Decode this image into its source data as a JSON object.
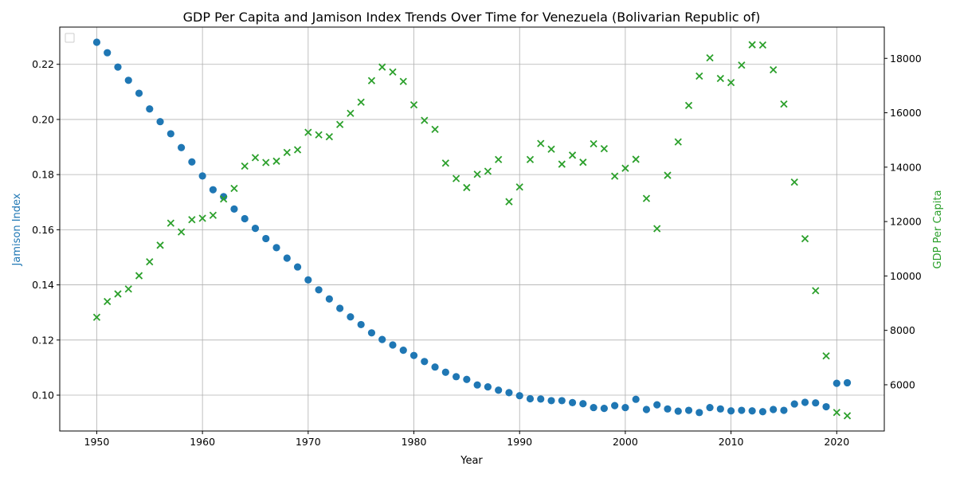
{
  "chart_data": {
    "type": "scatter",
    "title": "GDP Per Capita and Jamison Index Trends Over Time for Venezuela (Bolivarian Republic of)",
    "xlabel": "Year",
    "ylabel_left": "Jamison Index",
    "ylabel_right": "GDP Per Capita",
    "xlim": [
      1946.5,
      2024.5
    ],
    "ylim_left": [
      0.087,
      0.2335
    ],
    "ylim_right": [
      4300,
      19150
    ],
    "x_ticks": [
      1950,
      1960,
      1970,
      1980,
      1990,
      2000,
      2010,
      2020
    ],
    "y_ticks_left": [
      0.1,
      0.12,
      0.14,
      0.16,
      0.18,
      0.2,
      0.22
    ],
    "y_ticks_right": [
      6000,
      8000,
      10000,
      12000,
      14000,
      16000,
      18000
    ],
    "grid": true,
    "legend_position": "upper-left",
    "colors": {
      "jamison": "#1f77b4",
      "gdp": "#2ca02c",
      "grid": "#b0b0b0",
      "axis": "#000000"
    },
    "series": [
      {
        "key": "jamison",
        "axis": "left",
        "marker": "circle",
        "x": [
          1950,
          1951,
          1952,
          1953,
          1954,
          1955,
          1956,
          1957,
          1958,
          1959,
          1960,
          1961,
          1962,
          1963,
          1964,
          1965,
          1966,
          1967,
          1968,
          1969,
          1970,
          1971,
          1972,
          1973,
          1974,
          1975,
          1976,
          1977,
          1978,
          1979,
          1980,
          1981,
          1982,
          1983,
          1984,
          1985,
          1986,
          1987,
          1988,
          1989,
          1990,
          1991,
          1992,
          1993,
          1994,
          1995,
          1996,
          1997,
          1998,
          1999,
          2000,
          2001,
          2002,
          2003,
          2004,
          2005,
          2006,
          2007,
          2008,
          2009,
          2010,
          2011,
          2012,
          2013,
          2014,
          2015,
          2016,
          2017,
          2018,
          2019,
          2020,
          2021
        ],
        "values": [
          0.228,
          0.2242,
          0.219,
          0.2142,
          0.2095,
          0.2038,
          0.1992,
          0.1948,
          0.1898,
          0.1846,
          0.1795,
          0.1745,
          0.172,
          0.1675,
          0.164,
          0.1605,
          0.1568,
          0.1535,
          0.1497,
          0.1465,
          0.1418,
          0.1382,
          0.1349,
          0.1315,
          0.1284,
          0.1256,
          0.1226,
          0.1202,
          0.1182,
          0.1163,
          0.1144,
          0.1122,
          0.1102,
          0.1083,
          0.1067,
          0.1057,
          0.1037,
          0.103,
          0.1018,
          0.1009,
          0.0998,
          0.0987,
          0.0986,
          0.098,
          0.098,
          0.0973,
          0.0969,
          0.0955,
          0.0952,
          0.0962,
          0.0955,
          0.0985,
          0.0948,
          0.0965,
          0.095,
          0.0942,
          0.0945,
          0.0937,
          0.0955,
          0.095,
          0.0943,
          0.0945,
          0.0943,
          0.094,
          0.0948,
          0.0945,
          0.0968,
          0.0974,
          0.0972,
          0.0958,
          0.1043,
          0.1045
        ]
      },
      {
        "key": "gdp",
        "axis": "right",
        "marker": "x",
        "x": [
          1950,
          1951,
          1952,
          1953,
          1954,
          1955,
          1956,
          1957,
          1958,
          1959,
          1960,
          1961,
          1962,
          1963,
          1964,
          1965,
          1966,
          1967,
          1968,
          1969,
          1970,
          1971,
          1972,
          1973,
          1974,
          1975,
          1976,
          1977,
          1978,
          1979,
          1980,
          1981,
          1982,
          1983,
          1984,
          1985,
          1986,
          1987,
          1988,
          1989,
          1990,
          1991,
          1992,
          1993,
          1994,
          1995,
          1996,
          1997,
          1998,
          1999,
          2000,
          2001,
          2002,
          2003,
          2004,
          2005,
          2006,
          2007,
          2008,
          2009,
          2010,
          2011,
          2012,
          2013,
          2014,
          2015,
          2016,
          2017,
          2018,
          2019,
          2020,
          2021
        ],
        "values": [
          8480,
          9060,
          9340,
          9520,
          10010,
          10520,
          11130,
          11940,
          11620,
          12070,
          12120,
          12230,
          12830,
          13220,
          14040,
          14350,
          14170,
          14220,
          14540,
          14640,
          15280,
          15190,
          15120,
          15570,
          15980,
          16390,
          17180,
          17680,
          17500,
          17150,
          16290,
          15720,
          15390,
          14150,
          13580,
          13250,
          13740,
          13850,
          14280,
          12730,
          13270,
          14280,
          14870,
          14660,
          14110,
          14440,
          14180,
          14860,
          14680,
          13670,
          13960,
          14290,
          12850,
          11740,
          13700,
          14930,
          16270,
          17350,
          18020,
          17260,
          17110,
          17750,
          18500,
          18490,
          17580,
          16320,
          13450,
          11370,
          9460,
          7060,
          4980,
          4860
        ]
      }
    ]
  }
}
